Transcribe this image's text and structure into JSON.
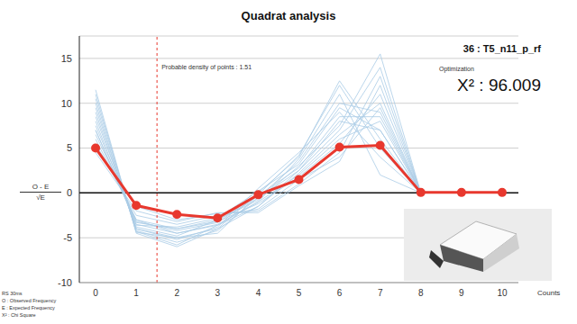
{
  "chart_data": {
    "type": "line",
    "title": "Quadrat analysis",
    "subtitle": "36 : T5_n11_p_rf",
    "xlabel": "Counts",
    "ylabel": {
      "numerator": "O - E",
      "denominator": "√E"
    },
    "x": [
      0,
      1,
      2,
      3,
      4,
      5,
      6,
      7,
      8,
      9,
      10
    ],
    "xlim": [
      -0.4,
      10.4
    ],
    "xticks": [
      0,
      1,
      2,
      3,
      4,
      5,
      6,
      7,
      8,
      9,
      10
    ],
    "ylim": [
      -10,
      17.5
    ],
    "yticks": [
      -10,
      -5,
      0,
      5,
      10,
      15
    ],
    "grid": true,
    "series": [
      {
        "color": "#e8382e",
        "marker": "circle",
        "values": [
          5,
          -1.4,
          -2.4,
          -2.8,
          -0.2,
          1.5,
          5.1,
          5.3,
          0.05,
          0.05,
          0.05
        ]
      },
      {
        "color": "#a9cbe6",
        "marker": "none",
        "values": [
          7,
          -3.5,
          -4.5,
          -3.5,
          -1,
          2,
          6,
          8,
          0,
          0,
          0
        ]
      },
      {
        "color": "#a9cbe6",
        "marker": "none",
        "values": [
          9,
          -4,
          -5,
          -4,
          -1.5,
          2.5,
          8,
          7,
          0,
          0,
          0
        ]
      },
      {
        "color": "#a9cbe6",
        "marker": "none",
        "values": [
          10.5,
          -4.2,
          -5.5,
          -4.2,
          -0.5,
          3.5,
          10,
          9,
          0,
          0,
          0
        ]
      },
      {
        "color": "#a9cbe6",
        "marker": "none",
        "values": [
          11.5,
          -4.5,
          -6,
          -4,
          0,
          4,
          12.5,
          6,
          0,
          0,
          0
        ]
      },
      {
        "color": "#a9cbe6",
        "marker": "none",
        "values": [
          6,
          -3,
          -4,
          -3.2,
          -1.2,
          1.8,
          5.5,
          11,
          0,
          0,
          0
        ]
      },
      {
        "color": "#a9cbe6",
        "marker": "none",
        "values": [
          8,
          -3.8,
          -4.8,
          -3,
          -0.8,
          3,
          7.5,
          15.5,
          0,
          0,
          0
        ]
      },
      {
        "color": "#a9cbe6",
        "marker": "none",
        "values": [
          5.5,
          -2.5,
          -3.5,
          -2.5,
          -1.8,
          1.5,
          4,
          9.5,
          0,
          0,
          0
        ]
      },
      {
        "color": "#a9cbe6",
        "marker": "none",
        "values": [
          9.5,
          -4,
          -5.2,
          -3.8,
          0.5,
          4.5,
          9,
          4,
          0,
          0,
          0
        ]
      },
      {
        "color": "#a9cbe6",
        "marker": "none",
        "values": [
          4.5,
          -2,
          -3.2,
          -2.2,
          -2.2,
          0.8,
          3.5,
          12,
          0,
          0,
          0
        ]
      },
      {
        "color": "#a9cbe6",
        "marker": "none",
        "values": [
          7.5,
          -3.2,
          -4.2,
          -3.3,
          -0.3,
          2.8,
          8.5,
          8.5,
          0,
          0,
          0
        ]
      },
      {
        "color": "#a9cbe6",
        "marker": "none",
        "values": [
          10,
          -4.3,
          -5.8,
          -3.6,
          -1,
          3.8,
          11,
          2,
          0,
          0,
          0
        ]
      },
      {
        "color": "#a9cbe6",
        "marker": "none",
        "values": [
          6.5,
          -3,
          -4.5,
          -3.6,
          -1.5,
          2.2,
          6.5,
          10,
          0,
          0,
          0
        ]
      },
      {
        "color": "#a9cbe6",
        "marker": "none",
        "values": [
          8.5,
          -3.6,
          -3.8,
          -2.8,
          0.2,
          3.2,
          9.5,
          7,
          0,
          0,
          0
        ]
      },
      {
        "color": "#a9cbe6",
        "marker": "none",
        "values": [
          5,
          -1.5,
          -3,
          -2.3,
          -2,
          1,
          4.5,
          13,
          0,
          0,
          0
        ]
      },
      {
        "color": "#a9cbe6",
        "marker": "none",
        "values": [
          11,
          -4.4,
          -5,
          -4.5,
          -0.2,
          4.2,
          12,
          5,
          0,
          0,
          0
        ]
      },
      {
        "color": "#a9cbe6",
        "marker": "none",
        "values": [
          7,
          -3.3,
          -4,
          -3,
          -0.6,
          2.5,
          7,
          14,
          0,
          0,
          0
        ]
      }
    ],
    "annotations": [
      {
        "text": "Probable density of points : 1.51",
        "x": 1.51,
        "line_style": "dashed",
        "color": "#e8382e"
      },
      {
        "text": "Optimization"
      },
      {
        "text": "X² : 96.009"
      }
    ],
    "notes": [
      "RS 30ms",
      "O : Observed Frequency",
      "E : Expected Frequency",
      "X² : Chi Square"
    ]
  }
}
